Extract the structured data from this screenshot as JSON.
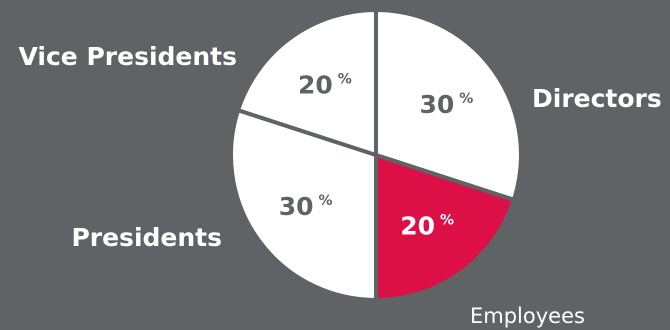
{
  "chart_data": {
    "type": "pie",
    "categories": [
      "Directors",
      "Employees",
      "Presidents",
      "Vice Presidents"
    ],
    "values": [
      30,
      20,
      30,
      20
    ],
    "value_labels": [
      "30",
      "20",
      "30",
      "20"
    ],
    "percent_sign": "%",
    "colors": [
      "#ffffff",
      "#dc1046",
      "#ffffff",
      "#ffffff"
    ],
    "value_text_colors": [
      "#5f6366",
      "#ffffff",
      "#5f6366",
      "#5f6366"
    ],
    "background_color": "#5f6366",
    "start_angle_deg": 0,
    "direction": "clockwise",
    "legend": "none"
  }
}
